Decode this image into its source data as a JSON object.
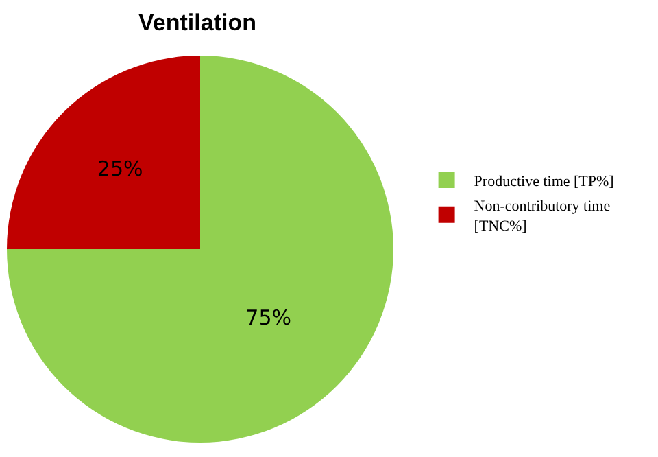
{
  "chart_data": {
    "type": "pie",
    "title": "Ventilation",
    "categories": [
      "Productive time [TP%]",
      "Non-contributory time [TNC%]"
    ],
    "values": [
      75,
      25
    ],
    "colors": [
      "#92d050",
      "#c00000"
    ],
    "value_labels": [
      "75%",
      "25%"
    ],
    "legend": "right"
  }
}
